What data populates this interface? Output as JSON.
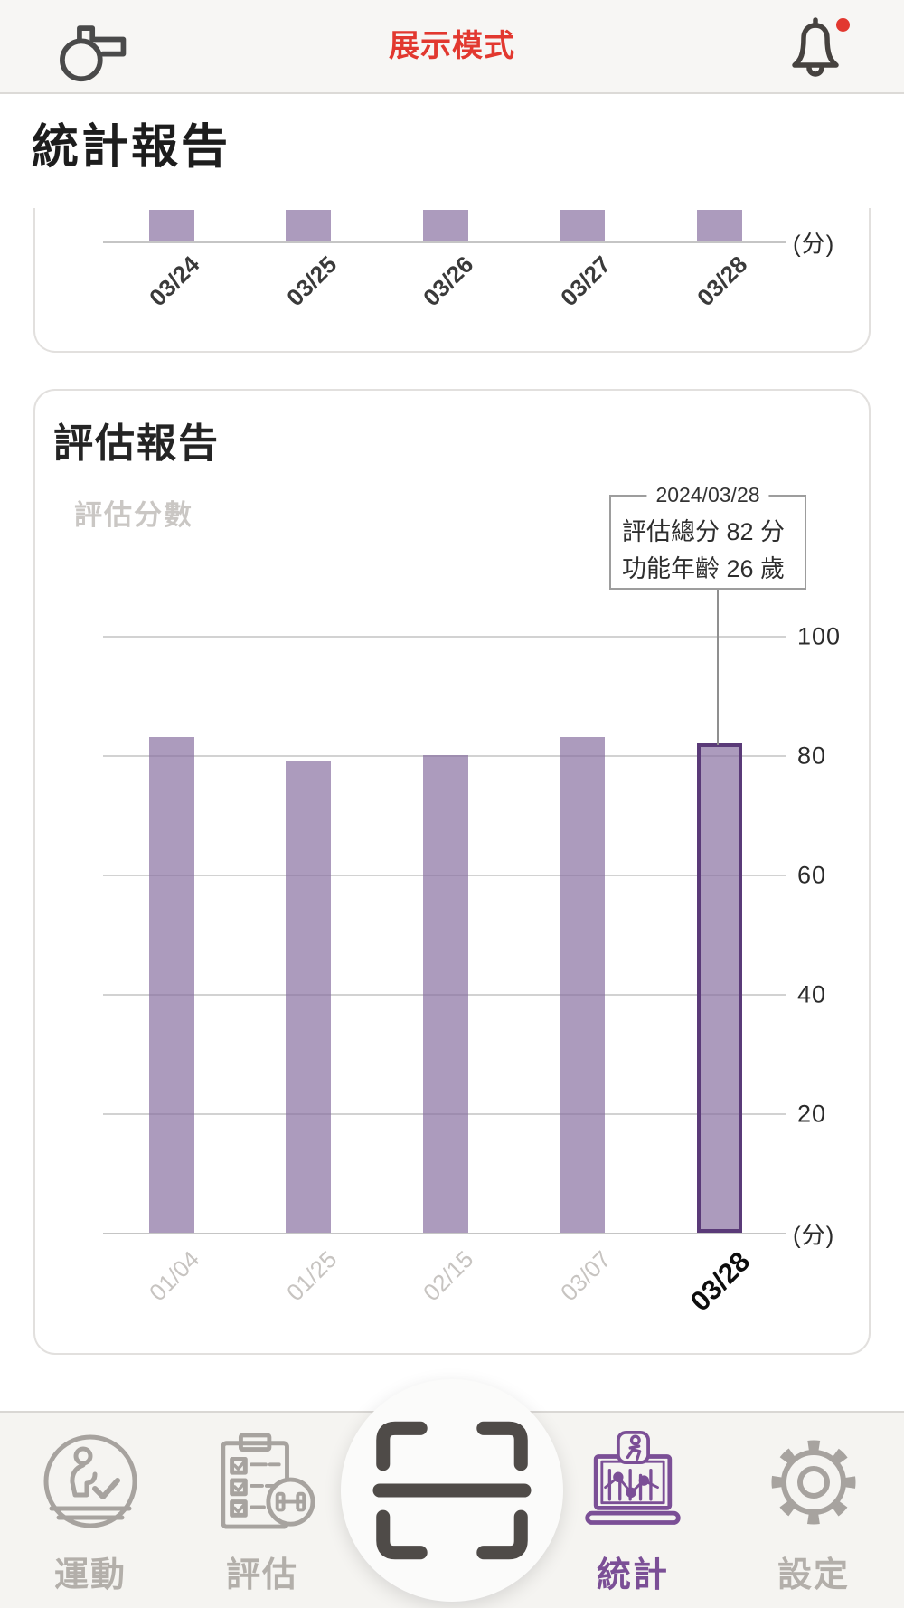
{
  "header": {
    "mode_label": "展示模式"
  },
  "page_title": "統計報告",
  "unit_label": "(分)",
  "tooltip": {
    "date": "2024/03/28",
    "line1": "評估總分 82 分",
    "line2": "功能年齡 26 歲"
  },
  "colors": {
    "accent_red": "#e2382f",
    "bar_purple": "rgba(133,108,158,0.68)",
    "bar_selected_border": "#5a3a78",
    "active_tab_purple": "#7b4f96",
    "gridline_gray": "#d2d2d2"
  },
  "chart_data": [
    {
      "type": "bar",
      "title": "統計報告",
      "categories": [
        "03/24",
        "03/25",
        "03/26",
        "03/27",
        "03/28"
      ],
      "values": [
        null,
        null,
        null,
        null,
        null
      ],
      "ylabel": "(分)",
      "note": "card clipped by scroll; only bar bottoms and x-axis visible",
      "bar_color": "rgba(133,108,158,0.68)"
    },
    {
      "type": "bar",
      "title": "評估報告",
      "subtitle": "評估分數",
      "categories": [
        "01/04",
        "01/25",
        "02/15",
        "03/07",
        "03/28"
      ],
      "values": [
        83,
        79,
        80,
        83,
        82
      ],
      "yticks": [
        100,
        80,
        60,
        40,
        20
      ],
      "ylim": [
        0,
        110
      ],
      "ylabel": "(分)",
      "grid": true,
      "value_axis_side": "right",
      "selected_index": 4,
      "selected": {
        "date": "2024/03/28",
        "total_score": 82,
        "functional_age": 26
      },
      "bar_color": "rgba(133,108,158,0.68)",
      "selected_border_color": "#5a3a78"
    }
  ],
  "tabbar": {
    "items": [
      {
        "label": "運動",
        "active": false
      },
      {
        "label": "評估",
        "active": false
      },
      {
        "label": "統計",
        "active": true
      },
      {
        "label": "設定",
        "active": false
      }
    ]
  }
}
